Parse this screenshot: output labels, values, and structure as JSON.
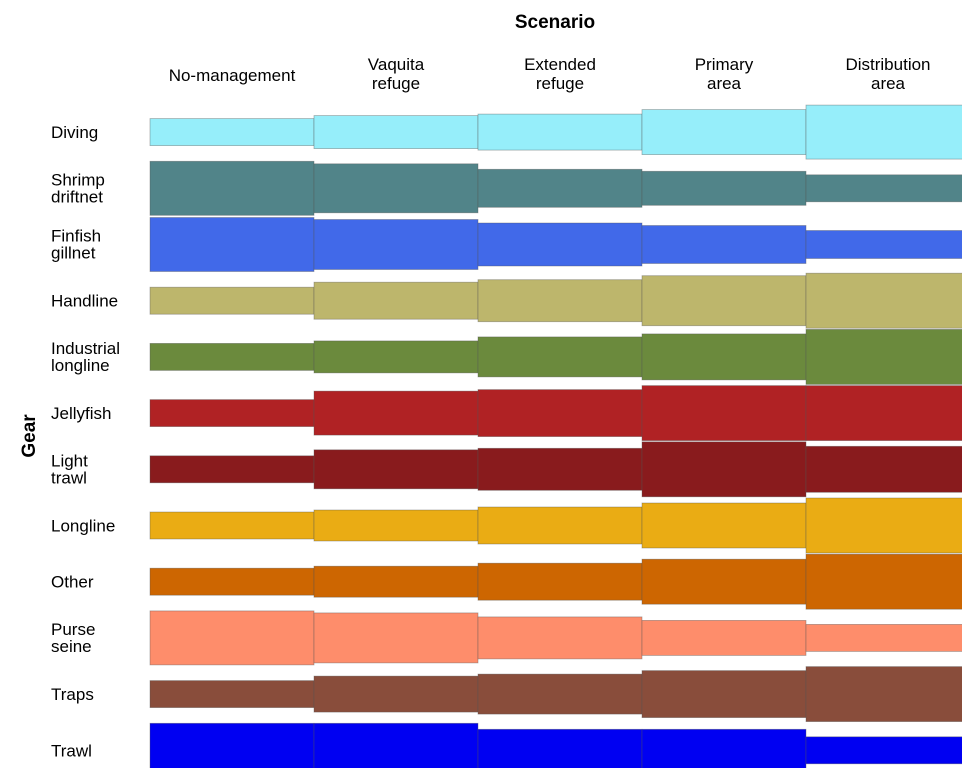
{
  "chart_data": {
    "type": "bar",
    "title": "Scenario",
    "ylabel": "Gear",
    "scenarios": [
      [
        "No-management"
      ],
      [
        "Vaquita",
        "refuge"
      ],
      [
        "Extended",
        "refuge"
      ],
      [
        "Primary",
        "area"
      ],
      [
        "Distribution",
        "area"
      ]
    ],
    "gears": [
      {
        "label": [
          "Diving"
        ],
        "color": "#96eefa",
        "values": [
          27,
          33,
          36,
          45,
          54
        ]
      },
      {
        "label": [
          "Shrimp",
          "driftnet"
        ],
        "color": "#518489",
        "values": [
          54,
          49,
          38,
          34,
          27
        ]
      },
      {
        "label": [
          "Finfish",
          "gillnet"
        ],
        "color": "#4169e9",
        "values": [
          54,
          50,
          43,
          38,
          28
        ]
      },
      {
        "label": [
          "Handline"
        ],
        "color": "#bdb66c",
        "values": [
          27,
          37,
          42,
          50,
          55
        ]
      },
      {
        "label": [
          "Industrial",
          "longline"
        ],
        "color": "#6b8a3d",
        "values": [
          27,
          32,
          40,
          46,
          55
        ]
      },
      {
        "label": [
          "Jellyfish"
        ],
        "color": "#b02224",
        "values": [
          27,
          44,
          47,
          55,
          55
        ]
      },
      {
        "label": [
          "Light",
          "trawl"
        ],
        "color": "#891b1d",
        "values": [
          27,
          39,
          42,
          55,
          46
        ]
      },
      {
        "label": [
          "Longline"
        ],
        "color": "#eaac14",
        "values": [
          27,
          31,
          37,
          45,
          55
        ]
      },
      {
        "label": [
          "Other"
        ],
        "color": "#cd6601",
        "values": [
          27,
          31,
          37,
          45,
          55
        ]
      },
      {
        "label": [
          "Purse",
          "seine"
        ],
        "color": "#fe8d6b",
        "values": [
          54,
          50,
          42,
          35,
          27
        ]
      },
      {
        "label": [
          "Traps"
        ],
        "color": "#894d3b",
        "values": [
          27,
          36,
          40,
          47,
          55
        ]
      },
      {
        "label": [
          "Trawl"
        ],
        "color": "#0000f2",
        "values": [
          54,
          54,
          42,
          42,
          27
        ]
      }
    ]
  }
}
